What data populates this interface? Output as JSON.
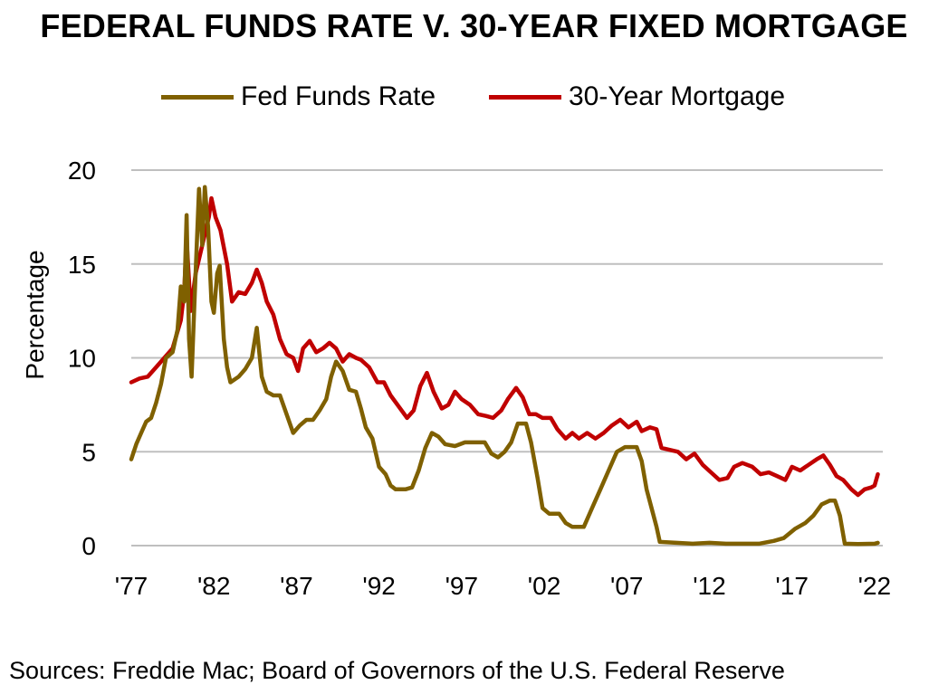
{
  "chart_data": {
    "type": "line",
    "title": "FEDERAL FUNDS RATE V. 30-YEAR FIXED MORTGAGE",
    "xlabel": "",
    "ylabel": "Percentage",
    "xlim": [
      1977,
      2022.5
    ],
    "ylim": [
      0,
      20
    ],
    "yticks": [
      0,
      5,
      10,
      15,
      20
    ],
    "xticks": [
      {
        "label": "'77",
        "value": 1977
      },
      {
        "label": "'82",
        "value": 1982
      },
      {
        "label": "'87",
        "value": 1987
      },
      {
        "label": "'92",
        "value": 1992
      },
      {
        "label": "'97",
        "value": 1997
      },
      {
        "label": "'02",
        "value": 2002
      },
      {
        "label": "'07",
        "value": 2007
      },
      {
        "label": "'12",
        "value": 2012
      },
      {
        "label": "'17",
        "value": 2017
      },
      {
        "label": "'22",
        "value": 2022
      }
    ],
    "grid": "horizontal",
    "legend_position": "top",
    "series": [
      {
        "name": "Fed Funds Rate",
        "color": "#7F6000",
        "points": [
          [
            1977.0,
            4.6
          ],
          [
            1977.3,
            5.4
          ],
          [
            1977.6,
            6.0
          ],
          [
            1977.9,
            6.6
          ],
          [
            1978.2,
            6.8
          ],
          [
            1978.5,
            7.6
          ],
          [
            1978.8,
            8.6
          ],
          [
            1979.1,
            10.0
          ],
          [
            1979.5,
            10.3
          ],
          [
            1979.8,
            11.5
          ],
          [
            1980.0,
            13.8
          ],
          [
            1980.2,
            13.0
          ],
          [
            1980.35,
            17.6
          ],
          [
            1980.5,
            11.0
          ],
          [
            1980.65,
            9.0
          ],
          [
            1980.85,
            13.5
          ],
          [
            1981.1,
            19.0
          ],
          [
            1981.3,
            16.0
          ],
          [
            1981.45,
            19.1
          ],
          [
            1981.65,
            17.0
          ],
          [
            1981.85,
            13.0
          ],
          [
            1982.0,
            12.4
          ],
          [
            1982.2,
            14.5
          ],
          [
            1982.35,
            14.9
          ],
          [
            1982.6,
            11.0
          ],
          [
            1982.8,
            9.5
          ],
          [
            1983.0,
            8.7
          ],
          [
            1983.5,
            9.0
          ],
          [
            1983.9,
            9.4
          ],
          [
            1984.3,
            10.0
          ],
          [
            1984.6,
            11.6
          ],
          [
            1984.9,
            9.0
          ],
          [
            1985.2,
            8.2
          ],
          [
            1985.6,
            8.0
          ],
          [
            1986.0,
            8.0
          ],
          [
            1986.4,
            7.0
          ],
          [
            1986.8,
            6.0
          ],
          [
            1987.2,
            6.4
          ],
          [
            1987.6,
            6.7
          ],
          [
            1988.0,
            6.7
          ],
          [
            1988.4,
            7.2
          ],
          [
            1988.8,
            7.8
          ],
          [
            1989.1,
            9.0
          ],
          [
            1989.4,
            9.8
          ],
          [
            1989.8,
            9.3
          ],
          [
            1990.2,
            8.3
          ],
          [
            1990.6,
            8.2
          ],
          [
            1990.9,
            7.3
          ],
          [
            1991.2,
            6.3
          ],
          [
            1991.6,
            5.7
          ],
          [
            1992.0,
            4.2
          ],
          [
            1992.4,
            3.8
          ],
          [
            1992.7,
            3.2
          ],
          [
            1993.0,
            3.0
          ],
          [
            1993.6,
            3.0
          ],
          [
            1994.0,
            3.1
          ],
          [
            1994.4,
            4.0
          ],
          [
            1994.8,
            5.2
          ],
          [
            1995.2,
            6.0
          ],
          [
            1995.6,
            5.8
          ],
          [
            1996.0,
            5.4
          ],
          [
            1996.6,
            5.3
          ],
          [
            1997.2,
            5.5
          ],
          [
            1997.8,
            5.5
          ],
          [
            1998.4,
            5.5
          ],
          [
            1998.8,
            4.9
          ],
          [
            1999.2,
            4.7
          ],
          [
            1999.6,
            5.0
          ],
          [
            2000.0,
            5.5
          ],
          [
            2000.4,
            6.5
          ],
          [
            2000.9,
            6.5
          ],
          [
            2001.2,
            5.5
          ],
          [
            2001.6,
            3.6
          ],
          [
            2001.9,
            2.0
          ],
          [
            2002.3,
            1.7
          ],
          [
            2002.9,
            1.7
          ],
          [
            2003.3,
            1.2
          ],
          [
            2003.7,
            1.0
          ],
          [
            2004.4,
            1.0
          ],
          [
            2004.9,
            2.0
          ],
          [
            2005.4,
            3.0
          ],
          [
            2005.9,
            4.0
          ],
          [
            2006.4,
            5.0
          ],
          [
            2006.9,
            5.25
          ],
          [
            2007.6,
            5.25
          ],
          [
            2007.9,
            4.5
          ],
          [
            2008.2,
            3.0
          ],
          [
            2008.5,
            2.0
          ],
          [
            2008.8,
            1.0
          ],
          [
            2009.0,
            0.2
          ],
          [
            2010.0,
            0.15
          ],
          [
            2011.0,
            0.1
          ],
          [
            2012.0,
            0.15
          ],
          [
            2013.0,
            0.1
          ],
          [
            2014.0,
            0.1
          ],
          [
            2015.0,
            0.1
          ],
          [
            2015.9,
            0.25
          ],
          [
            2016.5,
            0.4
          ],
          [
            2017.2,
            0.9
          ],
          [
            2017.8,
            1.2
          ],
          [
            2018.3,
            1.6
          ],
          [
            2018.8,
            2.2
          ],
          [
            2019.3,
            2.4
          ],
          [
            2019.6,
            2.4
          ],
          [
            2019.9,
            1.6
          ],
          [
            2020.2,
            0.1
          ],
          [
            2021.0,
            0.08
          ],
          [
            2022.0,
            0.1
          ],
          [
            2022.2,
            0.15
          ]
        ]
      },
      {
        "name": "30-Year Mortgage",
        "color": "#C00000",
        "points": [
          [
            1977.0,
            8.7
          ],
          [
            1977.5,
            8.9
          ],
          [
            1978.0,
            9.0
          ],
          [
            1978.5,
            9.5
          ],
          [
            1979.0,
            10.0
          ],
          [
            1979.5,
            10.5
          ],
          [
            1980.0,
            12.0
          ],
          [
            1980.2,
            13.5
          ],
          [
            1980.35,
            16.3
          ],
          [
            1980.6,
            12.5
          ],
          [
            1980.9,
            14.5
          ],
          [
            1981.3,
            16.0
          ],
          [
            1981.7,
            17.5
          ],
          [
            1981.85,
            18.5
          ],
          [
            1982.1,
            17.5
          ],
          [
            1982.4,
            16.8
          ],
          [
            1982.8,
            15.0
          ],
          [
            1983.1,
            13.0
          ],
          [
            1983.5,
            13.5
          ],
          [
            1983.9,
            13.4
          ],
          [
            1984.3,
            14.0
          ],
          [
            1984.6,
            14.7
          ],
          [
            1984.9,
            14.0
          ],
          [
            1985.2,
            13.0
          ],
          [
            1985.6,
            12.3
          ],
          [
            1986.0,
            11.0
          ],
          [
            1986.4,
            10.2
          ],
          [
            1986.8,
            10.0
          ],
          [
            1987.1,
            9.3
          ],
          [
            1987.4,
            10.5
          ],
          [
            1987.8,
            10.9
          ],
          [
            1988.2,
            10.3
          ],
          [
            1988.6,
            10.5
          ],
          [
            1989.0,
            10.8
          ],
          [
            1989.4,
            10.5
          ],
          [
            1989.8,
            9.8
          ],
          [
            1990.2,
            10.2
          ],
          [
            1990.6,
            10.0
          ],
          [
            1990.9,
            9.9
          ],
          [
            1991.4,
            9.5
          ],
          [
            1991.9,
            8.7
          ],
          [
            1992.3,
            8.7
          ],
          [
            1992.7,
            8.0
          ],
          [
            1993.2,
            7.4
          ],
          [
            1993.7,
            6.8
          ],
          [
            1994.1,
            7.2
          ],
          [
            1994.5,
            8.5
          ],
          [
            1994.9,
            9.2
          ],
          [
            1995.3,
            8.2
          ],
          [
            1995.8,
            7.3
          ],
          [
            1996.2,
            7.5
          ],
          [
            1996.6,
            8.2
          ],
          [
            1997.0,
            7.8
          ],
          [
            1997.5,
            7.5
          ],
          [
            1998.0,
            7.0
          ],
          [
            1998.5,
            6.9
          ],
          [
            1998.9,
            6.8
          ],
          [
            1999.4,
            7.2
          ],
          [
            1999.8,
            7.8
          ],
          [
            2000.3,
            8.4
          ],
          [
            2000.7,
            7.9
          ],
          [
            2001.1,
            7.0
          ],
          [
            2001.5,
            7.0
          ],
          [
            2001.9,
            6.8
          ],
          [
            2002.4,
            6.8
          ],
          [
            2002.8,
            6.2
          ],
          [
            2003.3,
            5.7
          ],
          [
            2003.7,
            6.0
          ],
          [
            2004.1,
            5.7
          ],
          [
            2004.6,
            6.0
          ],
          [
            2005.1,
            5.7
          ],
          [
            2005.6,
            6.0
          ],
          [
            2006.1,
            6.4
          ],
          [
            2006.6,
            6.7
          ],
          [
            2007.1,
            6.3
          ],
          [
            2007.6,
            6.6
          ],
          [
            2007.9,
            6.1
          ],
          [
            2008.4,
            6.3
          ],
          [
            2008.8,
            6.2
          ],
          [
            2009.1,
            5.2
          ],
          [
            2009.6,
            5.1
          ],
          [
            2010.1,
            5.0
          ],
          [
            2010.6,
            4.6
          ],
          [
            2011.1,
            4.9
          ],
          [
            2011.6,
            4.3
          ],
          [
            2012.1,
            3.9
          ],
          [
            2012.6,
            3.5
          ],
          [
            2013.1,
            3.6
          ],
          [
            2013.5,
            4.2
          ],
          [
            2014.0,
            4.4
          ],
          [
            2014.6,
            4.2
          ],
          [
            2015.1,
            3.8
          ],
          [
            2015.6,
            3.9
          ],
          [
            2016.1,
            3.7
          ],
          [
            2016.6,
            3.5
          ],
          [
            2017.0,
            4.2
          ],
          [
            2017.5,
            4.0
          ],
          [
            2018.0,
            4.3
          ],
          [
            2018.5,
            4.6
          ],
          [
            2018.9,
            4.8
          ],
          [
            2019.3,
            4.3
          ],
          [
            2019.7,
            3.7
          ],
          [
            2020.1,
            3.5
          ],
          [
            2020.6,
            3.0
          ],
          [
            2021.0,
            2.7
          ],
          [
            2021.4,
            3.0
          ],
          [
            2021.8,
            3.1
          ],
          [
            2022.0,
            3.2
          ],
          [
            2022.2,
            3.8
          ]
        ]
      }
    ]
  },
  "source": "Sources: Freddie Mac; Board of Governors of the U.S. Federal Reserve"
}
